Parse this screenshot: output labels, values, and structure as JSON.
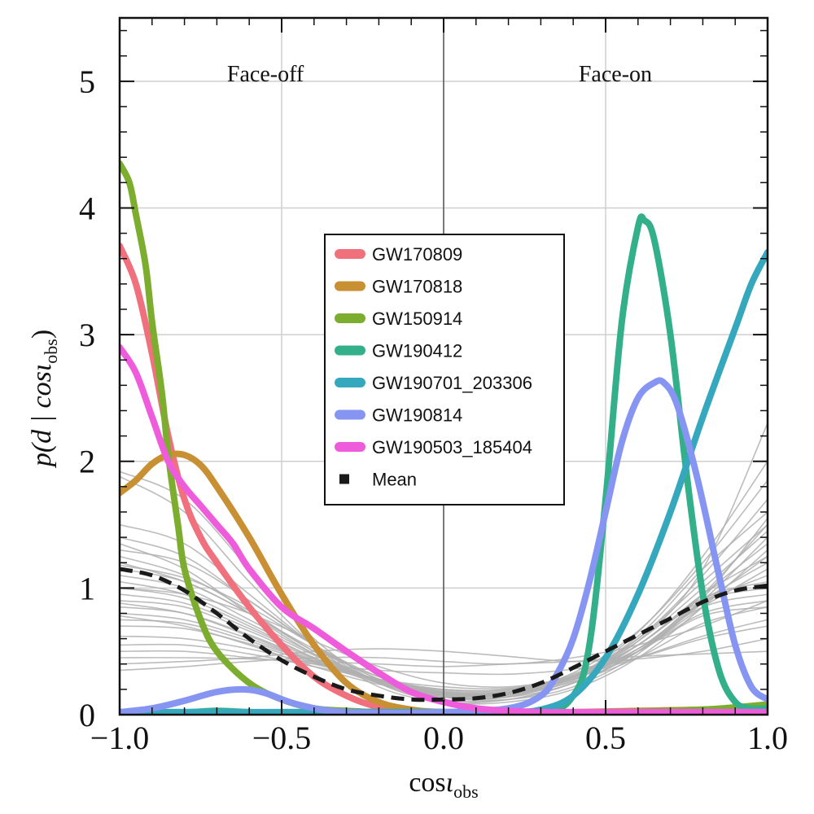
{
  "chart_data": {
    "type": "line",
    "title": "",
    "xlabel": {
      "base": "cos",
      "iota": "ι",
      "sub": "obs"
    },
    "ylabel": {
      "prefix": "p(d | cos",
      "iota": "ι",
      "sub": "obs",
      "suffix": ")"
    },
    "xlim": [
      -1.0,
      1.0
    ],
    "ylim": [
      0,
      5.5
    ],
    "xticks": [
      -1.0,
      -0.5,
      0.0,
      0.5,
      1.0
    ],
    "xtick_labels": [
      "−1.0",
      "−0.5",
      "0.0",
      "0.5",
      "1.0"
    ],
    "yticks": [
      0,
      1,
      2,
      3,
      4,
      5
    ],
    "ytick_labels": [
      "0",
      "1",
      "2",
      "3",
      "4",
      "5"
    ],
    "grid": true,
    "vertical_line_at": 0.0,
    "annotations": [
      {
        "text": "Face-off",
        "x": -0.55,
        "y": 5.0
      },
      {
        "text": "Face-on",
        "x": 0.53,
        "y": 5.0
      }
    ],
    "legend_position": "center",
    "series": [
      {
        "name": "GW170809",
        "color": "#f0707e",
        "x": [
          -1.0,
          -0.95,
          -0.9,
          -0.85,
          -0.8,
          -0.75,
          -0.7,
          -0.6,
          -0.5,
          -0.4,
          -0.3,
          -0.2,
          -0.1,
          0.0,
          0.2,
          0.4,
          0.6,
          0.8,
          1.0
        ],
        "y": [
          3.7,
          3.4,
          2.85,
          2.2,
          1.7,
          1.4,
          1.2,
          0.85,
          0.55,
          0.3,
          0.15,
          0.06,
          0.03,
          0.02,
          0.02,
          0.02,
          0.02,
          0.02,
          0.02
        ]
      },
      {
        "name": "GW170818",
        "color": "#c99033",
        "x": [
          -1.0,
          -0.95,
          -0.9,
          -0.85,
          -0.8,
          -0.75,
          -0.7,
          -0.6,
          -0.5,
          -0.4,
          -0.3,
          -0.2,
          -0.1,
          0.0,
          0.2,
          0.4,
          0.6,
          0.8,
          1.0
        ],
        "y": [
          1.75,
          1.85,
          1.98,
          2.05,
          2.05,
          1.97,
          1.8,
          1.4,
          0.95,
          0.55,
          0.25,
          0.1,
          0.04,
          0.02,
          0.02,
          0.02,
          0.03,
          0.04,
          0.06
        ]
      },
      {
        "name": "GW150914",
        "color": "#7cad2e",
        "x": [
          -1.0,
          -0.97,
          -0.95,
          -0.92,
          -0.9,
          -0.87,
          -0.85,
          -0.82,
          -0.8,
          -0.75,
          -0.7,
          -0.6,
          -0.5,
          -0.4,
          -0.3,
          -0.2,
          0.0,
          0.5,
          0.8,
          1.0
        ],
        "y": [
          4.35,
          4.2,
          3.95,
          3.55,
          3.1,
          2.55,
          2.05,
          1.5,
          1.15,
          0.75,
          0.5,
          0.25,
          0.12,
          0.05,
          0.03,
          0.02,
          0.02,
          0.02,
          0.04,
          0.08
        ]
      },
      {
        "name": "GW190412",
        "color": "#33b08a",
        "x": [
          -1.0,
          -0.8,
          -0.7,
          -0.6,
          -0.5,
          -0.3,
          0.0,
          0.3,
          0.4,
          0.45,
          0.5,
          0.55,
          0.6,
          0.62,
          0.65,
          0.7,
          0.75,
          0.8,
          0.85,
          0.9,
          0.95,
          1.0
        ],
        "y": [
          0.02,
          0.02,
          0.03,
          0.02,
          0.02,
          0.02,
          0.02,
          0.02,
          0.15,
          0.55,
          1.7,
          3.1,
          3.85,
          3.9,
          3.75,
          3.0,
          1.9,
          0.95,
          0.35,
          0.1,
          0.05,
          0.05
        ]
      },
      {
        "name": "GW190701_203306",
        "color": "#36a8be",
        "x": [
          -1.0,
          -0.5,
          0.0,
          0.2,
          0.3,
          0.4,
          0.5,
          0.6,
          0.7,
          0.8,
          0.9,
          0.95,
          1.0
        ],
        "y": [
          0.02,
          0.02,
          0.02,
          0.02,
          0.04,
          0.15,
          0.45,
          0.95,
          1.6,
          2.35,
          3.05,
          3.4,
          3.65
        ]
      },
      {
        "name": "GW190814",
        "color": "#8795f2",
        "x": [
          -1.0,
          -0.9,
          -0.8,
          -0.7,
          -0.62,
          -0.55,
          -0.45,
          -0.3,
          0.0,
          0.2,
          0.3,
          0.35,
          0.4,
          0.45,
          0.5,
          0.55,
          0.6,
          0.65,
          0.68,
          0.72,
          0.78,
          0.85,
          0.9,
          0.95,
          1.0
        ],
        "y": [
          0.02,
          0.05,
          0.11,
          0.18,
          0.2,
          0.17,
          0.08,
          0.02,
          0.02,
          0.05,
          0.15,
          0.32,
          0.6,
          1.05,
          1.6,
          2.15,
          2.5,
          2.62,
          2.62,
          2.45,
          1.9,
          1.1,
          0.55,
          0.22,
          0.12
        ]
      },
      {
        "name": "GW190503_185404",
        "color": "#ee5cdc",
        "x": [
          -1.0,
          -0.95,
          -0.9,
          -0.85,
          -0.8,
          -0.75,
          -0.7,
          -0.65,
          -0.6,
          -0.5,
          -0.4,
          -0.3,
          -0.2,
          -0.1,
          0.0,
          0.1,
          0.2,
          0.3,
          0.5,
          1.0
        ],
        "y": [
          2.9,
          2.7,
          2.35,
          2.0,
          1.8,
          1.65,
          1.5,
          1.35,
          1.15,
          0.85,
          0.68,
          0.5,
          0.33,
          0.18,
          0.1,
          0.05,
          0.03,
          0.02,
          0.02,
          0.02
        ]
      },
      {
        "name": "Mean",
        "color": "#1a1a1a",
        "dashed": true,
        "x": [
          -1.0,
          -0.9,
          -0.8,
          -0.7,
          -0.6,
          -0.5,
          -0.4,
          -0.3,
          -0.2,
          -0.1,
          0.0,
          0.1,
          0.2,
          0.3,
          0.4,
          0.5,
          0.6,
          0.7,
          0.8,
          0.9,
          1.0
        ],
        "y": [
          1.15,
          1.1,
          0.98,
          0.8,
          0.6,
          0.43,
          0.3,
          0.2,
          0.15,
          0.12,
          0.12,
          0.13,
          0.17,
          0.25,
          0.37,
          0.5,
          0.63,
          0.76,
          0.89,
          0.98,
          1.02
        ]
      }
    ],
    "background_curves": {
      "color": "#b0b0b0",
      "x": [
        -1.0,
        -0.8,
        -0.6,
        -0.4,
        -0.2,
        0.0,
        0.2,
        0.4,
        0.6,
        0.8,
        1.0
      ],
      "curves": [
        [
          1.92,
          1.7,
          1.15,
          0.6,
          0.25,
          0.1,
          0.1,
          0.2,
          0.45,
          0.85,
          1.3
        ],
        [
          1.88,
          1.6,
          1.05,
          0.55,
          0.22,
          0.1,
          0.12,
          0.25,
          0.5,
          0.9,
          1.4
        ],
        [
          1.5,
          1.35,
          0.95,
          0.55,
          0.25,
          0.12,
          0.12,
          0.25,
          0.5,
          0.95,
          1.5
        ],
        [
          1.4,
          1.25,
          0.9,
          0.55,
          0.28,
          0.14,
          0.12,
          0.22,
          0.48,
          0.92,
          1.55
        ],
        [
          1.3,
          1.2,
          0.9,
          0.55,
          0.28,
          0.15,
          0.14,
          0.25,
          0.5,
          0.88,
          1.25
        ],
        [
          1.25,
          1.1,
          0.82,
          0.5,
          0.26,
          0.14,
          0.14,
          0.3,
          0.6,
          1.05,
          1.5
        ],
        [
          1.2,
          1.05,
          0.8,
          0.5,
          0.27,
          0.15,
          0.15,
          0.27,
          0.55,
          0.95,
          1.35
        ],
        [
          1.15,
          1.05,
          0.8,
          0.52,
          0.3,
          0.18,
          0.17,
          0.28,
          0.5,
          0.85,
          1.15
        ],
        [
          1.1,
          1.0,
          0.75,
          0.48,
          0.27,
          0.16,
          0.16,
          0.3,
          0.58,
          1.0,
          1.45
        ],
        [
          1.05,
          0.95,
          0.72,
          0.47,
          0.27,
          0.16,
          0.16,
          0.28,
          0.52,
          0.9,
          1.2
        ],
        [
          1.0,
          0.92,
          0.7,
          0.45,
          0.26,
          0.16,
          0.16,
          0.28,
          0.52,
          0.88,
          1.1
        ],
        [
          0.95,
          0.88,
          0.68,
          0.45,
          0.27,
          0.17,
          0.17,
          0.3,
          0.6,
          1.1,
          1.7
        ],
        [
          0.9,
          0.85,
          0.66,
          0.44,
          0.27,
          0.17,
          0.17,
          0.29,
          0.55,
          0.92,
          1.05
        ],
        [
          0.85,
          0.8,
          0.63,
          0.43,
          0.27,
          0.18,
          0.18,
          0.3,
          0.55,
          0.9,
          1.0
        ],
        [
          0.8,
          0.75,
          0.6,
          0.42,
          0.27,
          0.18,
          0.18,
          0.3,
          0.52,
          0.85,
          0.95
        ],
        [
          0.75,
          0.72,
          0.58,
          0.42,
          0.28,
          0.19,
          0.19,
          0.31,
          0.55,
          0.95,
          1.25
        ],
        [
          0.7,
          0.68,
          0.56,
          0.41,
          0.28,
          0.2,
          0.2,
          0.3,
          0.5,
          0.8,
          0.9
        ],
        [
          0.62,
          0.6,
          0.52,
          0.4,
          0.28,
          0.2,
          0.2,
          0.32,
          0.58,
          1.15,
          2.3
        ],
        [
          0.55,
          0.55,
          0.48,
          0.38,
          0.28,
          0.22,
          0.21,
          0.3,
          0.5,
          0.78,
          0.85
        ],
        [
          0.5,
          0.5,
          0.45,
          0.4,
          0.35,
          0.33,
          0.32,
          0.36,
          0.45,
          0.6,
          0.7
        ],
        [
          0.45,
          0.45,
          0.44,
          0.42,
          0.4,
          0.38,
          0.4,
          0.42,
          0.46,
          0.48,
          0.5
        ],
        [
          0.4,
          0.42,
          0.45,
          0.5,
          0.52,
          0.5,
          0.46,
          0.42,
          0.44,
          0.5,
          0.6
        ],
        [
          0.35,
          0.38,
          0.42,
          0.45,
          0.45,
          0.42,
          0.4,
          0.45,
          0.55,
          0.7,
          0.9
        ],
        [
          1.35,
          1.15,
          0.8,
          0.48,
          0.25,
          0.14,
          0.14,
          0.3,
          0.65,
          1.25,
          2.0
        ],
        [
          1.0,
          0.95,
          0.8,
          0.58,
          0.38,
          0.25,
          0.22,
          0.3,
          0.45,
          0.62,
          0.75
        ],
        [
          0.88,
          0.8,
          0.62,
          0.42,
          0.25,
          0.16,
          0.16,
          0.3,
          0.62,
          1.15,
          1.6
        ],
        [
          1.18,
          1.08,
          0.85,
          0.55,
          0.3,
          0.17,
          0.16,
          0.26,
          0.45,
          0.72,
          0.85
        ],
        [
          0.78,
          0.7,
          0.55,
          0.38,
          0.24,
          0.16,
          0.18,
          0.33,
          0.66,
          1.2,
          1.85
        ]
      ]
    }
  }
}
